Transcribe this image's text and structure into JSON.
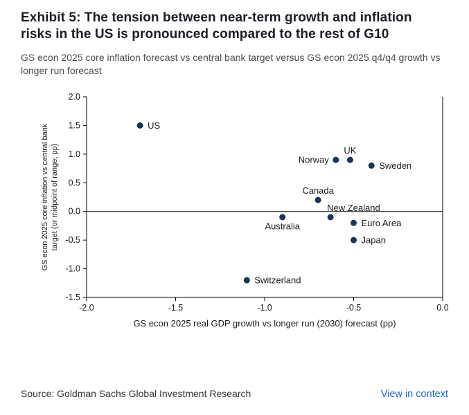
{
  "exhibit": {
    "title": "Exhibit 5: The tension between near-term growth and inflation risks in the US is pronounced compared to the rest of G10",
    "subtitle": "GS econ 2025 core inflation forecast vs central bank target versus GS econ 2025 q4/q4 growth vs longer run forecast"
  },
  "footer": {
    "source": "Source: Goldman Sachs Global Investment Research",
    "link": "View in context"
  },
  "colors": {
    "dot": "#16365c",
    "axis": "#000000",
    "label": "#1a1a1a",
    "tick_label": "#1a1a1a",
    "link": "#1e62d0"
  },
  "chart_data": {
    "type": "scatter",
    "title": "",
    "xlabel": "GS econ 2025 real GDP growth vs longer run (2030) forecast (pp)",
    "ylabel_line1": "GS econ 2025 core inflation vs central bank",
    "ylabel_line2": "target (or midpoint of range; pp)",
    "xlim": [
      -2.0,
      0.0
    ],
    "ylim": [
      -1.5,
      2.0
    ],
    "xticks": [
      -2.0,
      -1.5,
      -1.0,
      -0.5,
      0.0
    ],
    "yticks": [
      2.0,
      1.5,
      1.0,
      0.5,
      0.0,
      -0.5,
      -1.0,
      -1.5
    ],
    "grid": false,
    "zero_line_y": 0.0,
    "points": [
      {
        "label": "US",
        "x": -1.7,
        "y": 1.5,
        "label_pos": "right"
      },
      {
        "label": "Norway",
        "x": -0.6,
        "y": 0.9,
        "label_pos": "left"
      },
      {
        "label": "UK",
        "x": -0.52,
        "y": 0.9,
        "label_pos": "above"
      },
      {
        "label": "Sweden",
        "x": -0.4,
        "y": 0.8,
        "label_pos": "right"
      },
      {
        "label": "Canada",
        "x": -0.7,
        "y": 0.2,
        "label_pos": "above"
      },
      {
        "label": "New Zealand",
        "x": -0.63,
        "y": -0.1,
        "label_pos": "above-right"
      },
      {
        "label": "Australia",
        "x": -0.9,
        "y": -0.1,
        "label_pos": "below"
      },
      {
        "label": "Euro Area",
        "x": -0.5,
        "y": -0.2,
        "label_pos": "right"
      },
      {
        "label": "Japan",
        "x": -0.5,
        "y": -0.5,
        "label_pos": "right"
      },
      {
        "label": "Switzerland",
        "x": -1.1,
        "y": -1.2,
        "label_pos": "right"
      }
    ]
  }
}
